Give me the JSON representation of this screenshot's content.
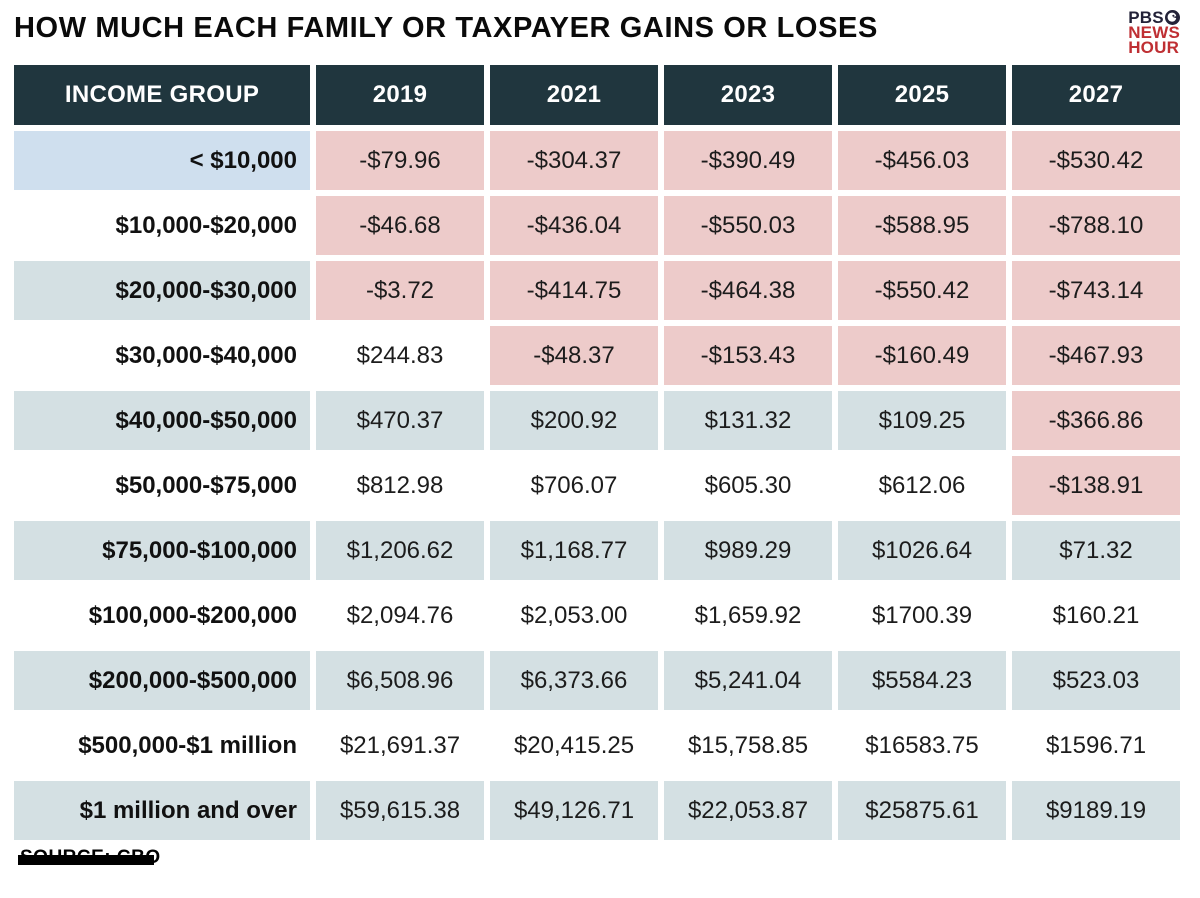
{
  "title": "HOW MUCH EACH FAMILY OR TAXPAYER GAINS OR LOSES",
  "logo": {
    "pbs": "PBS",
    "news": "NEWS",
    "hour": "HOUR"
  },
  "source": "SOURCE: CBO",
  "colors": {
    "header_bg": "#20363e",
    "negative_bg": "#edcbca",
    "row_alt_bg": "#d4e0e3",
    "row_plain_bg": "#ffffff",
    "highlight_bg": "#cfdfee",
    "logo_red": "#bf2f33",
    "logo_navy": "#232238",
    "text_dark": "#1c1c1c"
  },
  "table": {
    "columns": [
      "INCOME GROUP",
      "2019",
      "2021",
      "2023",
      "2025",
      "2027"
    ],
    "rows": [
      {
        "label": "< $10,000",
        "values": [
          "-$79.96",
          "-$304.37",
          "-$390.49",
          "-$456.03",
          "-$530.42"
        ]
      },
      {
        "label": "$10,000-$20,000",
        "values": [
          "-$46.68",
          "-$436.04",
          "-$550.03",
          "-$588.95",
          "-$788.10"
        ]
      },
      {
        "label": "$20,000-$30,000",
        "values": [
          "-$3.72",
          "-$414.75",
          "-$464.38",
          "-$550.42",
          "-$743.14"
        ]
      },
      {
        "label": "$30,000-$40,000",
        "values": [
          "$244.83",
          "-$48.37",
          "-$153.43",
          "-$160.49",
          "-$467.93"
        ]
      },
      {
        "label": "$40,000-$50,000",
        "values": [
          "$470.37",
          "$200.92",
          "$131.32",
          "$109.25",
          "-$366.86"
        ]
      },
      {
        "label": "$50,000-$75,000",
        "values": [
          "$812.98",
          "$706.07",
          "$605.30",
          "$612.06",
          "-$138.91"
        ]
      },
      {
        "label": "$75,000-$100,000",
        "values": [
          "$1,206.62",
          "$1,168.77",
          "$989.29",
          "$1026.64",
          "$71.32"
        ]
      },
      {
        "label": "$100,000-$200,000",
        "values": [
          "$2,094.76",
          "$2,053.00",
          "$1,659.92",
          "$1700.39",
          "$160.21"
        ]
      },
      {
        "label": "$200,000-$500,000",
        "values": [
          "$6,508.96",
          "$6,373.66",
          "$5,241.04",
          "$5584.23",
          "$523.03"
        ]
      },
      {
        "label": "$500,000-$1 million",
        "values": [
          "$21,691.37",
          "$20,415.25",
          "$15,758.85",
          "$16583.75",
          "$1596.71"
        ]
      },
      {
        "label": "$1 million and over",
        "values": [
          "$59,615.38",
          "$49,126.71",
          "$22,053.87",
          "$25875.61",
          "$9189.19"
        ]
      }
    ]
  },
  "chart_data": {
    "type": "table",
    "title": "HOW MUCH EACH FAMILY OR TAXPAYER GAINS OR LOSES",
    "source": "SOURCE: CBO",
    "categories": [
      "< $10,000",
      "$10,000-$20,000",
      "$20,000-$30,000",
      "$30,000-$40,000",
      "$40,000-$50,000",
      "$50,000-$75,000",
      "$75,000-$100,000",
      "$100,000-$200,000",
      "$200,000-$500,000",
      "$500,000-$1 million",
      "$1 million and over"
    ],
    "series": [
      {
        "name": "2019",
        "values": [
          -79.96,
          -46.68,
          -3.72,
          244.83,
          470.37,
          812.98,
          1206.62,
          2094.76,
          6508.96,
          21691.37,
          59615.38
        ]
      },
      {
        "name": "2021",
        "values": [
          -304.37,
          -436.04,
          -414.75,
          -48.37,
          200.92,
          706.07,
          1168.77,
          2053.0,
          6373.66,
          20415.25,
          49126.71
        ]
      },
      {
        "name": "2023",
        "values": [
          -390.49,
          -550.03,
          -464.38,
          -153.43,
          131.32,
          605.3,
          989.29,
          1659.92,
          5241.04,
          15758.85,
          22053.87
        ]
      },
      {
        "name": "2025",
        "values": [
          -456.03,
          -588.95,
          -550.42,
          -160.49,
          109.25,
          612.06,
          1026.64,
          1700.39,
          5584.23,
          16583.75,
          25875.61
        ]
      },
      {
        "name": "2027",
        "values": [
          -530.42,
          -788.1,
          -743.14,
          -467.93,
          -366.86,
          -138.91,
          71.32,
          160.21,
          523.03,
          1596.71,
          9189.19
        ]
      }
    ],
    "notes": "Units are US dollars per family/taxpayer; negative values (losses) are shaded pink in the graphic."
  }
}
